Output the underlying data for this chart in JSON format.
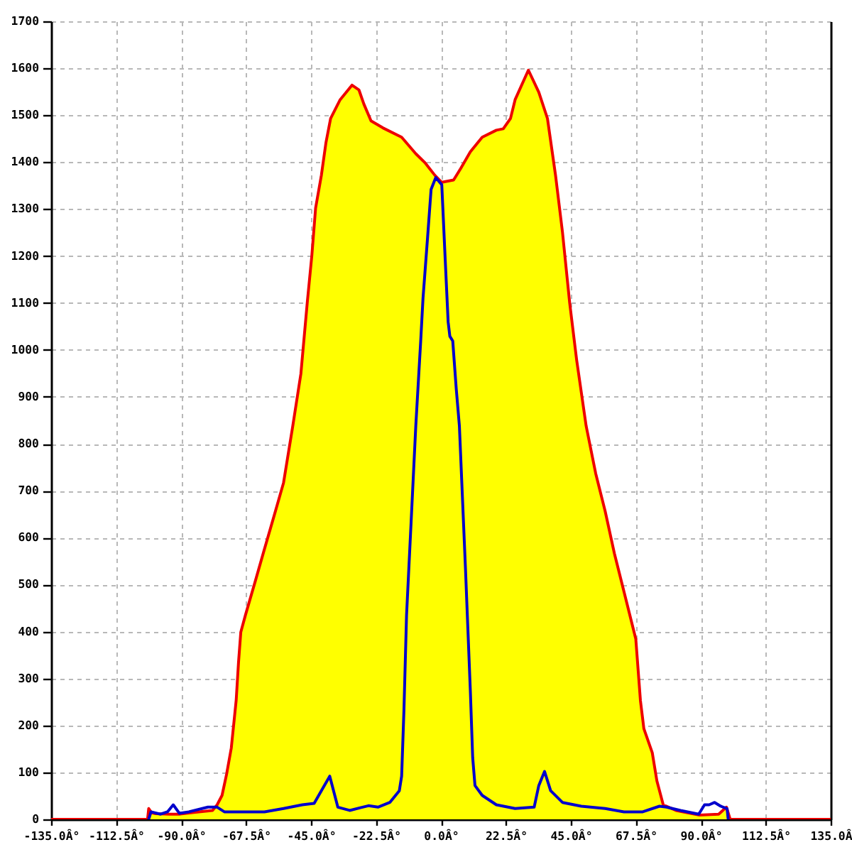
{
  "chart_data": {
    "type": "area",
    "x": [
      -135,
      -101.6,
      -101.2,
      -100.2,
      -98.8,
      -94,
      -90.6,
      -85,
      -79.1,
      -77.5,
      -75.8,
      -74.2,
      -72.6,
      -70.9,
      -70.1,
      -69.3,
      -67.7,
      -64.4,
      -61.1,
      -57.8,
      -54.5,
      -51.3,
      -48.5,
      -46.3,
      -44.7,
      -43.4,
      -41.4,
      -39.8,
      -38.2,
      -34.9,
      -30.8,
      -28.4,
      -26.7,
      -24.2,
      -20.1,
      -13.6,
      -8.7,
      -5.4,
      -2.1,
      0.3,
      4.4,
      6.9,
      10.2,
      14.3,
      19.2,
      21.6,
      24.1,
      25.7,
      30.3,
      33.9,
      36.9,
      39.7,
      42.1,
      44.6,
      47,
      50.3,
      53.6,
      56.9,
      60.1,
      63.4,
      67.5,
      69.1,
      70.3,
      73.2,
      74.8,
      77,
      81.4,
      89.6,
      96.2,
      98.9,
      100.2,
      135
    ],
    "series": [
      {
        "color": "#ffff00",
        "x": [
          -101.6,
          -101.2,
          -100.2,
          -98.8,
          -94,
          -90.6,
          -85,
          -79.1,
          -77.5,
          -75.8,
          -74.2,
          -72.6,
          -70.9,
          -70.1,
          -69.3,
          -67.7,
          -64.4,
          -61.1,
          -57.8,
          -54.5,
          -51.3,
          -48.5,
          -46.3,
          -44.7,
          -43.4,
          -41.4,
          -39.8,
          -38.2,
          -34.9,
          -30.8,
          -28.4,
          -26.7,
          -24.2,
          -20.1,
          -13.6,
          -8.7,
          -5.4,
          -2.1,
          0.3,
          4.4,
          6.9,
          10.2,
          14.3,
          19.2,
          21.6,
          24.1,
          25.7,
          30.3,
          33.9,
          36.9,
          39.7,
          42.1,
          44.6,
          47,
          50.3,
          53.6,
          56.9,
          60.1,
          63.4,
          67.5,
          69.1,
          70.3,
          73.2,
          74.8,
          77,
          81.4,
          89.6,
          96.2,
          98.9,
          100.2
        ],
        "values": [
          0,
          23,
          14,
          12,
          11,
          11,
          15,
          19,
          31,
          51,
          97,
          152,
          254,
          334,
          399,
          435,
          505,
          576,
          646,
          717,
          838,
          949,
          1100,
          1201,
          1302,
          1372,
          1442,
          1493,
          1533,
          1564,
          1554,
          1524,
          1488,
          1473,
          1453,
          1418,
          1398,
          1372,
          1357,
          1362,
          1387,
          1422,
          1453,
          1468,
          1471,
          1493,
          1533,
          1596,
          1549,
          1493,
          1372,
          1251,
          1100,
          979,
          838,
          737,
          656,
          566,
          485,
          384,
          253,
          193,
          142,
          82,
          31,
          19,
          9,
          11,
          26,
          0
        ]
      },
      {
        "type": "line",
        "color": "#ee0000",
        "values": [
          0,
          0,
          23,
          14,
          12,
          11,
          11,
          15,
          19,
          31,
          51,
          97,
          152,
          254,
          334,
          399,
          435,
          505,
          576,
          646,
          717,
          838,
          949,
          1100,
          1201,
          1302,
          1372,
          1442,
          1493,
          1533,
          1564,
          1554,
          1524,
          1488,
          1473,
          1453,
          1418,
          1398,
          1372,
          1357,
          1362,
          1387,
          1422,
          1453,
          1468,
          1471,
          1493,
          1533,
          1596,
          1549,
          1493,
          1372,
          1251,
          1100,
          979,
          838,
          737,
          656,
          566,
          485,
          384,
          253,
          193,
          142,
          82,
          31,
          19,
          9,
          11,
          26,
          0,
          0
        ]
      },
      {
        "type": "line",
        "color": "#0000cc",
        "x": [
          -101.2,
          -100.4,
          -97.1,
          -94.7,
          -92.7,
          -90.6,
          -87.3,
          -80.7,
          -77.5,
          -75,
          -61.1,
          -54.5,
          -48,
          -43.9,
          -41.4,
          -38.5,
          -35.7,
          -31.6,
          -25.1,
          -21.8,
          -17.7,
          -14.4,
          -13.6,
          -12.8,
          -11.9,
          -10.3,
          -8.7,
          -7,
          -6.2,
          -4.6,
          -3.4,
          -1.8,
          0.3,
          1.5,
          2.5,
          3.1,
          4.1,
          5.3,
          6.4,
          8.5,
          10.2,
          11,
          11.8,
          14.3,
          19.2,
          25.7,
          32.3,
          33.9,
          35.9,
          38,
          42.1,
          48.6,
          56.9,
          63.4,
          69.9,
          75.7,
          78.1,
          83,
          89.3,
          91.3,
          92.9,
          94.8,
          96.9,
          99.1,
          99.5
        ],
        "values": [
          0,
          16,
          11,
          16,
          31,
          13,
          16,
          26,
          26,
          16,
          16,
          23,
          31,
          34,
          61,
          92,
          26,
          19,
          29,
          26,
          36,
          61,
          92,
          233,
          435,
          636,
          838,
          1019,
          1110,
          1241,
          1342,
          1367,
          1352,
          1191,
          1060,
          1029,
          1019,
          918,
          838,
          535,
          273,
          132,
          72,
          51,
          31,
          23,
          26,
          72,
          102,
          61,
          36,
          28,
          23,
          16,
          16,
          28,
          26,
          19,
          11,
          31,
          31,
          36,
          28,
          23,
          0
        ]
      }
    ],
    "xlim": [
      -135,
      135
    ],
    "xticks": [
      {
        "value": -135,
        "label": "-135.0Â°"
      },
      {
        "value": -112.5,
        "label": "-112.5Â°"
      },
      {
        "value": -90,
        "label": "-90.0Â°"
      },
      {
        "value": -67.5,
        "label": "-67.5Â°"
      },
      {
        "value": -45,
        "label": "-45.0Â°"
      },
      {
        "value": -22.5,
        "label": "-22.5Â°"
      },
      {
        "value": 0,
        "label": "0.0Â°"
      },
      {
        "value": 22.5,
        "label": "22.5Â°"
      },
      {
        "value": 45,
        "label": "45.0Â°"
      },
      {
        "value": 67.5,
        "label": "67.5Â°"
      },
      {
        "value": 90,
        "label": "90.0Â°"
      },
      {
        "value": 112.5,
        "label": "112.5Â°"
      },
      {
        "value": 135,
        "label": "135.0Â"
      }
    ],
    "ylim": [
      0,
      1700
    ],
    "yticks": [
      0,
      100,
      200,
      300,
      400,
      500,
      600,
      700,
      800,
      900,
      1000,
      1100,
      1200,
      1300,
      1400,
      1500,
      1600,
      1700
    ],
    "grid": true
  }
}
